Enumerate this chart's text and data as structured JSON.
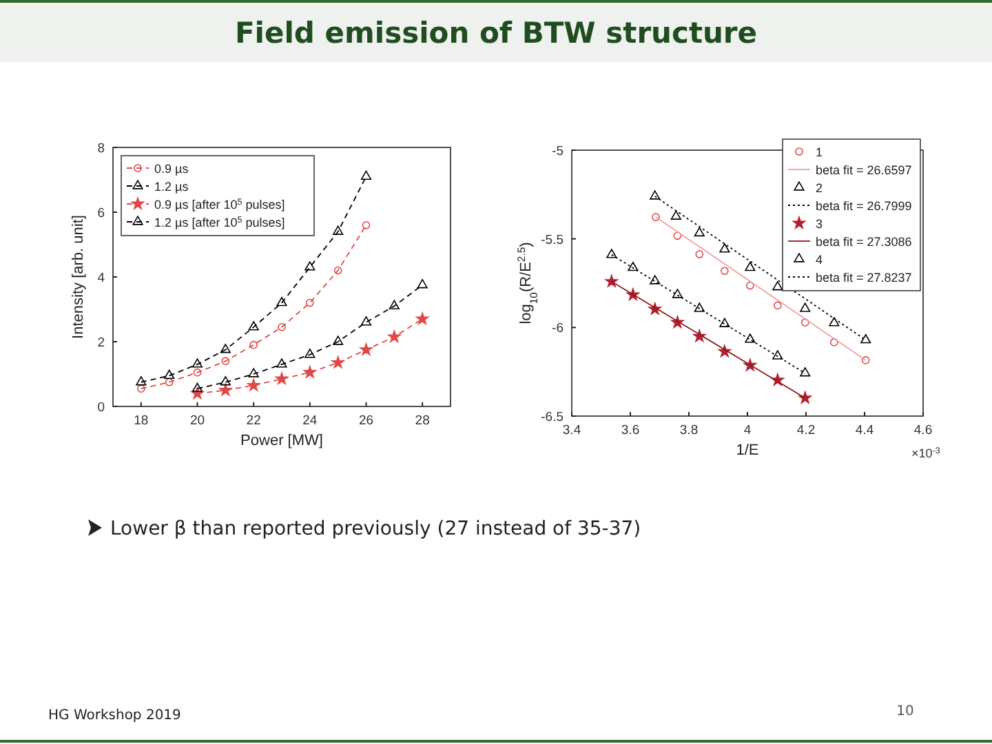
{
  "chart_data": [
    {
      "type": "line",
      "xlabel": "Power [MW]",
      "ylabel": "Intensity [arb. unit]",
      "xlim": [
        17,
        29
      ],
      "xticks": [
        18,
        20,
        22,
        24,
        26,
        28
      ],
      "ylim": [
        0,
        8
      ],
      "yticks": [
        0,
        2,
        4,
        6,
        8
      ],
      "grid": false,
      "legend": "top left",
      "line_style": "dashed",
      "series": [
        {
          "name": "0.9 µs",
          "color": "#e04848",
          "marker": "circle",
          "x": [
            18,
            19,
            20,
            21,
            22,
            23,
            24,
            25,
            26
          ],
          "values": [
            0.55,
            0.75,
            1.05,
            1.4,
            1.9,
            2.45,
            3.2,
            4.2,
            5.6
          ]
        },
        {
          "name": "1.2 µs",
          "color": "#000000",
          "marker": "triangle",
          "x": [
            18,
            19,
            20,
            21,
            22,
            23,
            24,
            25,
            26
          ],
          "values": [
            0.75,
            0.95,
            1.3,
            1.75,
            2.45,
            3.2,
            4.3,
            5.4,
            7.1
          ]
        },
        {
          "name": "0.9 µs [after 10$^{5}$ pulses]",
          "color": "#e04848",
          "marker": "star",
          "x": [
            20,
            21,
            22,
            23,
            24,
            25,
            26,
            27,
            28
          ],
          "values": [
            0.4,
            0.5,
            0.65,
            0.85,
            1.05,
            1.35,
            1.75,
            2.15,
            2.7
          ]
        },
        {
          "name": "1.2 µs [after 10$^{5}$ pulses]",
          "color": "#000000",
          "marker": "triangle",
          "x": [
            20,
            21,
            22,
            23,
            24,
            25,
            26,
            27,
            28
          ],
          "values": [
            0.55,
            0.75,
            1.0,
            1.3,
            1.6,
            2.0,
            2.6,
            3.1,
            3.75
          ]
        }
      ]
    },
    {
      "type": "scatter",
      "xlabel": "1/E",
      "ylabel": "log$_{10}$(R/E$^{2.5}$)",
      "xlim": [
        3.4,
        4.6
      ],
      "xticks": [
        3.4,
        3.6,
        3.8,
        4,
        4.2,
        4.4,
        4.6
      ],
      "ylim": [
        -6.5,
        -5
      ],
      "yticks": [
        -6.5,
        -6,
        -5.5,
        -5
      ],
      "grid": false,
      "legend": "top right",
      "annotations": [
        "×10$^{-3}$"
      ],
      "series": [
        {
          "name": "1",
          "color": "#e04848",
          "marker": "circle",
          "x": [
            3.687,
            3.761,
            3.836,
            3.922,
            4.009,
            4.103,
            4.197,
            4.296,
            4.404
          ],
          "values": [
            -5.377,
            -5.483,
            -5.587,
            -5.681,
            -5.764,
            -5.876,
            -5.972,
            -6.084,
            -6.185
          ]
        },
        {
          "name": "beta fit = 26.6597",
          "type": "line",
          "color": "#f0a0a0",
          "marker": "none",
          "line_style": "solid",
          "x": [
            3.687,
            4.404
          ],
          "values": [
            -5.377,
            -6.185
          ]
        },
        {
          "name": "2",
          "color": "#000000",
          "marker": "triangle",
          "x": [
            3.684,
            3.756,
            3.836,
            3.922,
            4.009,
            4.103,
            4.197,
            4.296,
            4.404
          ],
          "values": [
            -5.26,
            -5.374,
            -5.468,
            -5.559,
            -5.663,
            -5.772,
            -5.894,
            -5.975,
            -6.071
          ]
        },
        {
          "name": "beta fit = 26.7999",
          "type": "line",
          "color": "#000000",
          "marker": "none",
          "line_style": "dotted",
          "x": [
            3.684,
            4.404
          ],
          "values": [
            -5.26,
            -6.071
          ]
        },
        {
          "name": "3",
          "color": "#b02030",
          "marker": "star",
          "x": [
            3.536,
            3.609,
            3.684,
            3.761,
            3.836,
            3.922,
            4.009,
            4.103,
            4.197
          ],
          "values": [
            -5.741,
            -5.816,
            -5.897,
            -5.972,
            -6.05,
            -6.136,
            -6.214,
            -6.297,
            -6.398
          ]
        },
        {
          "name": "beta fit = 27.3086",
          "type": "line",
          "color": "#8b1a1a",
          "marker": "none",
          "line_style": "solid",
          "x": [
            3.536,
            4.197
          ],
          "values": [
            -5.741,
            -6.398
          ]
        },
        {
          "name": "4",
          "color": "#000000",
          "marker": "triangle",
          "x": [
            3.536,
            3.609,
            3.684,
            3.761,
            3.836,
            3.922,
            4.009,
            4.103,
            4.197
          ],
          "values": [
            -5.59,
            -5.663,
            -5.738,
            -5.816,
            -5.894,
            -5.98,
            -6.068,
            -6.162,
            -6.258
          ]
        },
        {
          "name": "beta fit = 27.8237",
          "type": "line",
          "color": "#000000",
          "marker": "none",
          "line_style": "dotted",
          "x": [
            3.536,
            4.197
          ],
          "values": [
            -5.59,
            -6.258
          ]
        }
      ]
    },
    {
      "type": "other",
      "title": "Field emission of BTW structure",
      "annotations": [
        "Lower β than reported previously (27 instead of 35-37)",
        "HG Workshop 2019",
        "10"
      ]
    }
  ]
}
